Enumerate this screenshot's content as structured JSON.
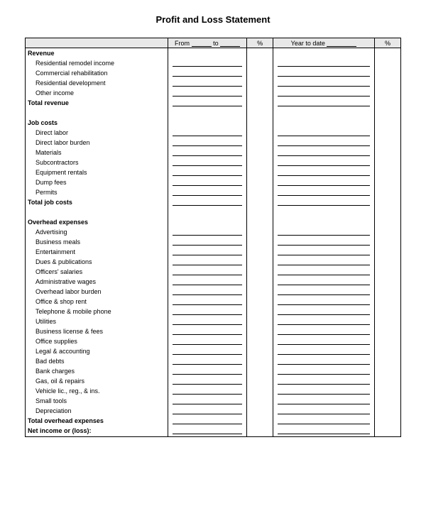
{
  "title": "Profit and Loss Statement",
  "header": {
    "from_label": "From",
    "to_label": "to",
    "pct_label": "%",
    "ytd_label": "Year to date",
    "pct2_label": "%"
  },
  "sections": {
    "revenue": {
      "heading": "Revenue",
      "items": [
        "Residential remodel income",
        "Commercial rehabilitation",
        "Residential development",
        "Other income"
      ],
      "total": "Total revenue"
    },
    "job_costs": {
      "heading": "Job costs",
      "items": [
        "Direct labor",
        "Direct labor burden",
        "Materials",
        "Subcontractors",
        "Equipment rentals",
        "Dump fees",
        "Permits"
      ],
      "total": "Total job costs"
    },
    "overhead": {
      "heading": "Overhead expenses",
      "items": [
        "Advertising",
        "Business meals",
        "Entertainment",
        "Dues & publications",
        "Officers' salaries",
        "Administrative wages",
        "Overhead labor burden",
        "Office & shop rent",
        "Telephone & mobile phone",
        "Utilities",
        "Business license & fees",
        "Office supplies",
        "Legal & accounting",
        "Bad debts",
        "Bank charges",
        "Gas, oil & repairs",
        "Vehicle lic., reg., & ins.",
        "Small tools",
        "Depreciation"
      ],
      "total": "Total overhead expenses"
    },
    "net": "Net income or (loss):"
  },
  "style": {
    "background_color": "#ffffff",
    "header_bg": "#e8e8e8",
    "border_color": "#000000",
    "font_family": "Arial, sans-serif",
    "title_fontsize": 13,
    "body_fontsize": 9
  }
}
